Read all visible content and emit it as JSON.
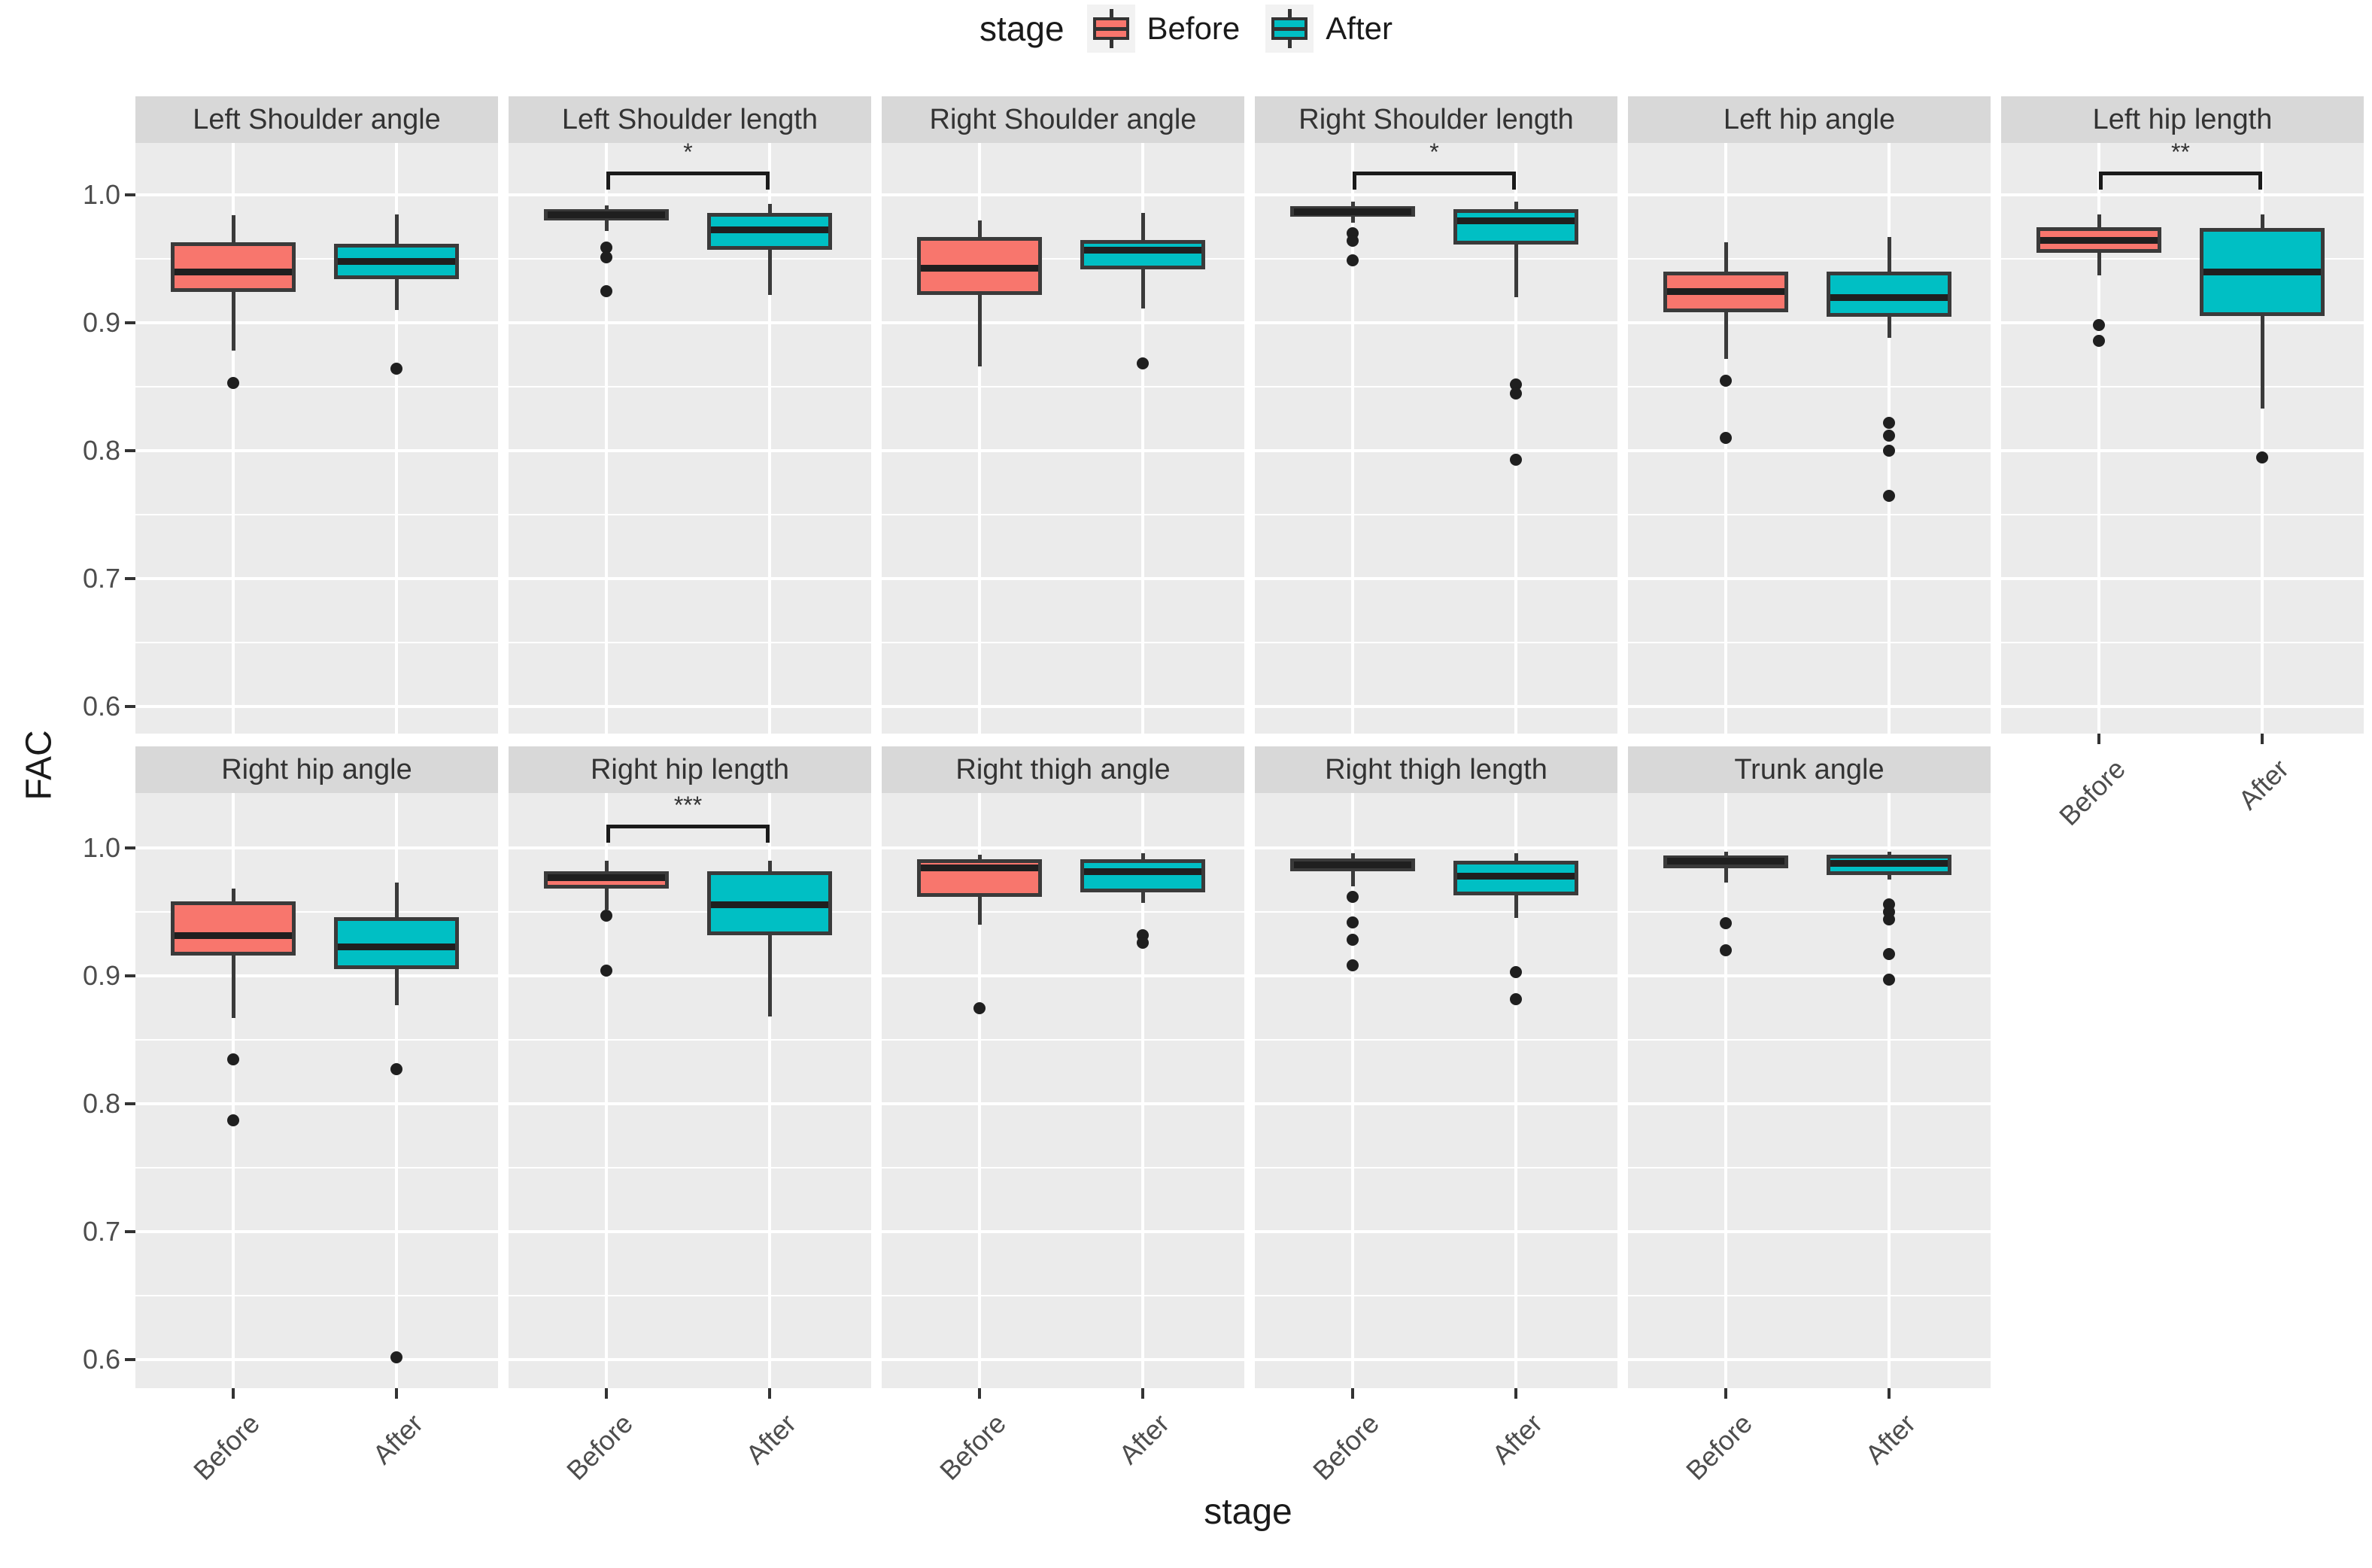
{
  "legend": {
    "title": "stage",
    "items": [
      {
        "label": "Before",
        "color": "#F8766D"
      },
      {
        "label": "After",
        "color": "#00BFC4"
      }
    ]
  },
  "axes": {
    "y_title": "FAC",
    "x_title": "stage",
    "y_ticks": [
      {
        "value": 1.0,
        "label": "1.0"
      },
      {
        "value": 0.9,
        "label": "0.9"
      },
      {
        "value": 0.8,
        "label": "0.8"
      },
      {
        "value": 0.7,
        "label": "0.7"
      },
      {
        "value": 0.6,
        "label": "0.6"
      }
    ],
    "x_tick_labels": [
      "Before",
      "After"
    ]
  },
  "chart_data": {
    "type": "boxplot",
    "facet_variable": "body measure",
    "group_variable": "stage",
    "categories": [
      "Before",
      "After"
    ],
    "xlabel": "stage",
    "ylabel": "FAC",
    "ylim": [
      0.578,
      1.043
    ],
    "y_major_gridlines": [
      1.0,
      0.9,
      0.8,
      0.7,
      0.6
    ],
    "y_minor_gridlines": [
      0.95,
      0.85,
      0.75,
      0.65
    ],
    "grid": true,
    "legend_position": "top",
    "colors": {
      "Before": "#F8766D",
      "After": "#00BFC4"
    },
    "panel_background": "#ebebeb",
    "strip_background": "#d8d8d8",
    "facets": [
      {
        "name": "Left Shoulder angle",
        "row": 1,
        "col": 0,
        "significance": null,
        "series": [
          {
            "name": "Before",
            "min": 0.878,
            "q1": 0.924,
            "median": 0.94,
            "q3": 0.963,
            "max": 0.984,
            "outliers": [
              0.853
            ]
          },
          {
            "name": "After",
            "min": 0.91,
            "q1": 0.934,
            "median": 0.948,
            "q3": 0.962,
            "max": 0.985,
            "outliers": [
              0.864
            ]
          }
        ]
      },
      {
        "name": "Left Shoulder length",
        "row": 1,
        "col": 1,
        "significance": "*",
        "series": [
          {
            "name": "Before",
            "min": 0.972,
            "q1": 0.98,
            "median": 0.985,
            "q3": 0.989,
            "max": 0.992,
            "outliers": [
              0.959,
              0.951,
              0.925
            ]
          },
          {
            "name": "After",
            "min": 0.922,
            "q1": 0.957,
            "median": 0.973,
            "q3": 0.986,
            "max": 0.993,
            "outliers": []
          }
        ]
      },
      {
        "name": "Right Shoulder angle",
        "row": 1,
        "col": 2,
        "significance": null,
        "series": [
          {
            "name": "Before",
            "min": 0.866,
            "q1": 0.922,
            "median": 0.943,
            "q3": 0.967,
            "max": 0.98,
            "outliers": []
          },
          {
            "name": "After",
            "min": 0.911,
            "q1": 0.942,
            "median": 0.957,
            "q3": 0.965,
            "max": 0.986,
            "outliers": [
              0.868
            ]
          }
        ]
      },
      {
        "name": "Right Shoulder length",
        "row": 1,
        "col": 3,
        "significance": "*",
        "series": [
          {
            "name": "Before",
            "min": 0.978,
            "q1": 0.983,
            "median": 0.987,
            "q3": 0.991,
            "max": 0.995,
            "outliers": [
              0.97,
              0.964,
              0.949
            ]
          },
          {
            "name": "After",
            "min": 0.92,
            "q1": 0.961,
            "median": 0.98,
            "q3": 0.989,
            "max": 0.995,
            "outliers": [
              0.852,
              0.845,
              0.793
            ]
          }
        ]
      },
      {
        "name": "Left hip angle",
        "row": 1,
        "col": 4,
        "significance": null,
        "series": [
          {
            "name": "Before",
            "min": 0.872,
            "q1": 0.908,
            "median": 0.925,
            "q3": 0.94,
            "max": 0.963,
            "outliers": [
              0.855,
              0.81
            ]
          },
          {
            "name": "After",
            "min": 0.888,
            "q1": 0.905,
            "median": 0.92,
            "q3": 0.94,
            "max": 0.967,
            "outliers": [
              0.822,
              0.812,
              0.8,
              0.765
            ]
          }
        ]
      },
      {
        "name": "Left hip length",
        "row": 1,
        "col": 5,
        "significance": "**",
        "series": [
          {
            "name": "Before",
            "min": 0.937,
            "q1": 0.955,
            "median": 0.965,
            "q3": 0.975,
            "max": 0.985,
            "outliers": [
              0.898,
              0.886
            ]
          },
          {
            "name": "After",
            "min": 0.833,
            "q1": 0.905,
            "median": 0.94,
            "q3": 0.974,
            "max": 0.985,
            "outliers": [
              0.795
            ]
          }
        ]
      },
      {
        "name": "Right hip angle",
        "row": 2,
        "col": 0,
        "significance": null,
        "series": [
          {
            "name": "Before",
            "min": 0.867,
            "q1": 0.916,
            "median": 0.932,
            "q3": 0.958,
            "max": 0.968,
            "outliers": [
              0.835,
              0.787
            ]
          },
          {
            "name": "After",
            "min": 0.877,
            "q1": 0.905,
            "median": 0.923,
            "q3": 0.946,
            "max": 0.973,
            "outliers": [
              0.827,
              0.602
            ]
          }
        ]
      },
      {
        "name": "Right hip length",
        "row": 2,
        "col": 1,
        "significance": "***",
        "series": [
          {
            "name": "Before",
            "min": 0.952,
            "q1": 0.968,
            "median": 0.977,
            "q3": 0.982,
            "max": 0.99,
            "outliers": [
              0.947,
              0.904
            ]
          },
          {
            "name": "After",
            "min": 0.868,
            "q1": 0.932,
            "median": 0.956,
            "q3": 0.982,
            "max": 0.99,
            "outliers": []
          }
        ]
      },
      {
        "name": "Right thigh angle",
        "row": 2,
        "col": 2,
        "significance": null,
        "series": [
          {
            "name": "Before",
            "min": 0.94,
            "q1": 0.962,
            "median": 0.985,
            "q3": 0.991,
            "max": 0.995,
            "outliers": [
              0.875
            ]
          },
          {
            "name": "After",
            "min": 0.957,
            "q1": 0.965,
            "median": 0.982,
            "q3": 0.991,
            "max": 0.996,
            "outliers": [
              0.932,
              0.926
            ]
          }
        ]
      },
      {
        "name": "Right thigh length",
        "row": 2,
        "col": 3,
        "significance": null,
        "series": [
          {
            "name": "Before",
            "min": 0.97,
            "q1": 0.982,
            "median": 0.987,
            "q3": 0.992,
            "max": 0.996,
            "outliers": [
              0.962,
              0.942,
              0.928,
              0.908
            ]
          },
          {
            "name": "After",
            "min": 0.945,
            "q1": 0.963,
            "median": 0.978,
            "q3": 0.99,
            "max": 0.996,
            "outliers": [
              0.903,
              0.882
            ]
          }
        ]
      },
      {
        "name": "Trunk angle",
        "row": 2,
        "col": 4,
        "significance": null,
        "series": [
          {
            "name": "Before",
            "min": 0.973,
            "q1": 0.984,
            "median": 0.99,
            "q3": 0.994,
            "max": 0.997,
            "outliers": [
              0.941,
              0.92
            ]
          },
          {
            "name": "After",
            "min": 0.975,
            "q1": 0.979,
            "median": 0.988,
            "q3": 0.995,
            "max": 0.997,
            "outliers": [
              0.956,
              0.95,
              0.944,
              0.917,
              0.897
            ]
          }
        ]
      }
    ]
  }
}
